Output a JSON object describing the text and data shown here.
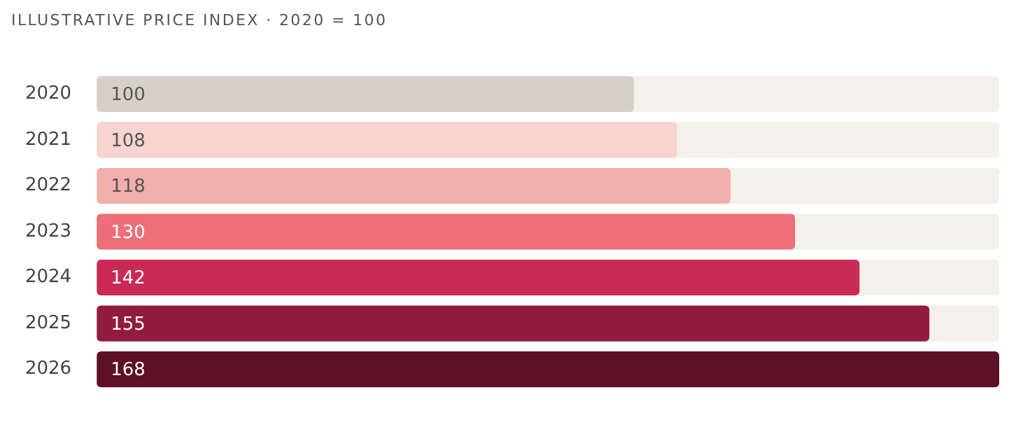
{
  "chart_data": {
    "type": "bar",
    "orientation": "horizontal",
    "title": "ILLUSTRATIVE PRICE INDEX · 2020 = 100",
    "categories": [
      "2020",
      "2021",
      "2022",
      "2023",
      "2024",
      "2025",
      "2026"
    ],
    "values": [
      100,
      108,
      118,
      130,
      142,
      155,
      168
    ],
    "colors": [
      "#d6d0c8",
      "#f7d4d0",
      "#f2aeaa",
      "#ee6e79",
      "#c92a55",
      "#921b40",
      "#5e1025"
    ],
    "xlim": [
      0,
      168
    ],
    "data_labels": true,
    "legend": false
  }
}
